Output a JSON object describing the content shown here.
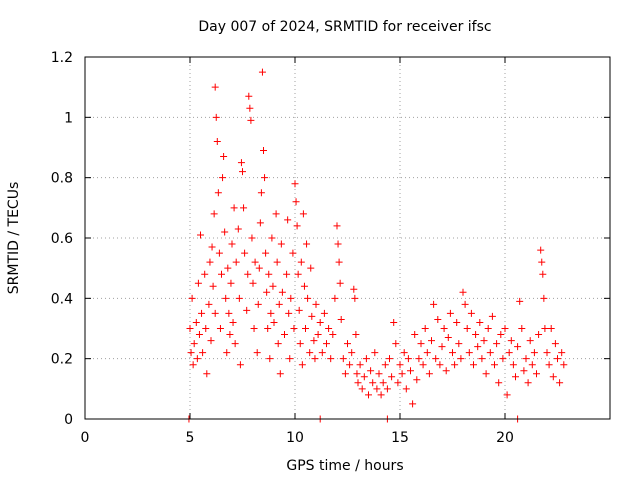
{
  "chart_data": {
    "type": "scatter",
    "title": "Day 007 of 2024, SRMTID for receiver ifsc",
    "xlabel": "GPS time / hours",
    "ylabel": "SRMTID / TECUs",
    "xlim": [
      0,
      25
    ],
    "ylim": [
      0,
      1.2
    ],
    "xticks": [
      "0",
      "5",
      "10",
      "15",
      "20"
    ],
    "yticks": [
      "0",
      "0.2",
      "0.4",
      "0.6",
      "0.8",
      "1",
      "1.2"
    ],
    "grid": true,
    "marker": "+",
    "color": "#ff0000",
    "series": [
      {
        "name": "SRMTID",
        "points": [
          [
            4.95,
            0.0
          ],
          [
            11.2,
            0.0
          ],
          [
            14.4,
            0.0
          ],
          [
            20.6,
            0.0
          ],
          [
            5.0,
            0.3
          ],
          [
            5.05,
            0.22
          ],
          [
            5.1,
            0.4
          ],
          [
            5.15,
            0.18
          ],
          [
            5.2,
            0.25
          ],
          [
            5.3,
            0.32
          ],
          [
            5.35,
            0.2
          ],
          [
            5.4,
            0.45
          ],
          [
            5.45,
            0.28
          ],
          [
            5.5,
            0.61
          ],
          [
            5.55,
            0.35
          ],
          [
            5.6,
            0.22
          ],
          [
            5.7,
            0.48
          ],
          [
            5.75,
            0.3
          ],
          [
            5.8,
            0.15
          ],
          [
            5.9,
            0.38
          ],
          [
            5.95,
            0.52
          ],
          [
            6.0,
            0.26
          ],
          [
            6.05,
            0.57
          ],
          [
            6.1,
            0.44
          ],
          [
            6.15,
            0.68
          ],
          [
            6.2,
            0.35
          ],
          [
            6.2,
            1.1
          ],
          [
            6.25,
            1.0
          ],
          [
            6.3,
            0.92
          ],
          [
            6.35,
            0.75
          ],
          [
            6.4,
            0.55
          ],
          [
            6.45,
            0.3
          ],
          [
            6.5,
            0.48
          ],
          [
            6.55,
            0.8
          ],
          [
            6.6,
            0.87
          ],
          [
            6.65,
            0.62
          ],
          [
            6.7,
            0.4
          ],
          [
            6.75,
            0.22
          ],
          [
            6.8,
            0.5
          ],
          [
            6.85,
            0.35
          ],
          [
            6.9,
            0.28
          ],
          [
            6.95,
            0.45
          ],
          [
            7.0,
            0.58
          ],
          [
            7.05,
            0.32
          ],
          [
            7.1,
            0.7
          ],
          [
            7.15,
            0.25
          ],
          [
            7.2,
            0.52
          ],
          [
            7.3,
            0.63
          ],
          [
            7.35,
            0.4
          ],
          [
            7.4,
            0.18
          ],
          [
            7.45,
            0.85
          ],
          [
            7.5,
            0.82
          ],
          [
            7.55,
            0.7
          ],
          [
            7.6,
            0.55
          ],
          [
            7.7,
            0.36
          ],
          [
            7.75,
            0.48
          ],
          [
            7.8,
            1.07
          ],
          [
            7.85,
            1.03
          ],
          [
            7.9,
            0.99
          ],
          [
            7.95,
            0.6
          ],
          [
            8.0,
            0.45
          ],
          [
            8.05,
            0.3
          ],
          [
            8.1,
            0.52
          ],
          [
            8.2,
            0.22
          ],
          [
            8.25,
            0.38
          ],
          [
            8.3,
            0.5
          ],
          [
            8.35,
            0.65
          ],
          [
            8.4,
            0.75
          ],
          [
            8.45,
            1.15
          ],
          [
            8.5,
            0.89
          ],
          [
            8.55,
            0.8
          ],
          [
            8.6,
            0.55
          ],
          [
            8.65,
            0.42
          ],
          [
            8.7,
            0.3
          ],
          [
            8.75,
            0.48
          ],
          [
            8.8,
            0.2
          ],
          [
            8.85,
            0.35
          ],
          [
            8.9,
            0.6
          ],
          [
            8.95,
            0.44
          ],
          [
            9.0,
            0.32
          ],
          [
            9.1,
            0.68
          ],
          [
            9.15,
            0.52
          ],
          [
            9.2,
            0.25
          ],
          [
            9.25,
            0.38
          ],
          [
            9.3,
            0.15
          ],
          [
            9.35,
            0.58
          ],
          [
            9.4,
            0.42
          ],
          [
            9.5,
            0.28
          ],
          [
            9.6,
            0.48
          ],
          [
            9.65,
            0.66
          ],
          [
            9.7,
            0.35
          ],
          [
            9.75,
            0.2
          ],
          [
            9.8,
            0.4
          ],
          [
            9.9,
            0.55
          ],
          [
            9.95,
            0.3
          ],
          [
            10.0,
            0.78
          ],
          [
            10.05,
            0.72
          ],
          [
            10.1,
            0.64
          ],
          [
            10.15,
            0.48
          ],
          [
            10.2,
            0.36
          ],
          [
            10.25,
            0.25
          ],
          [
            10.3,
            0.52
          ],
          [
            10.35,
            0.18
          ],
          [
            10.4,
            0.68
          ],
          [
            10.45,
            0.44
          ],
          [
            10.5,
            0.3
          ],
          [
            10.55,
            0.58
          ],
          [
            10.6,
            0.4
          ],
          [
            10.7,
            0.22
          ],
          [
            10.75,
            0.5
          ],
          [
            10.8,
            0.34
          ],
          [
            10.9,
            0.26
          ],
          [
            10.95,
            0.2
          ],
          [
            11.0,
            0.38
          ],
          [
            11.1,
            0.28
          ],
          [
            11.2,
            0.32
          ],
          [
            11.3,
            0.22
          ],
          [
            11.4,
            0.35
          ],
          [
            11.5,
            0.25
          ],
          [
            11.6,
            0.3
          ],
          [
            11.7,
            0.2
          ],
          [
            11.8,
            0.28
          ],
          [
            11.9,
            0.4
          ],
          [
            12.0,
            0.64
          ],
          [
            12.05,
            0.58
          ],
          [
            12.1,
            0.52
          ],
          [
            12.15,
            0.45
          ],
          [
            12.2,
            0.33
          ],
          [
            12.3,
            0.2
          ],
          [
            12.4,
            0.15
          ],
          [
            12.5,
            0.25
          ],
          [
            12.6,
            0.18
          ],
          [
            12.7,
            0.22
          ],
          [
            12.8,
            0.43
          ],
          [
            12.85,
            0.4
          ],
          [
            12.9,
            0.28
          ],
          [
            12.95,
            0.15
          ],
          [
            13.0,
            0.12
          ],
          [
            13.1,
            0.18
          ],
          [
            13.2,
            0.1
          ],
          [
            13.3,
            0.14
          ],
          [
            13.4,
            0.2
          ],
          [
            13.5,
            0.08
          ],
          [
            13.6,
            0.16
          ],
          [
            13.7,
            0.12
          ],
          [
            13.8,
            0.22
          ],
          [
            13.9,
            0.1
          ],
          [
            14.0,
            0.15
          ],
          [
            14.1,
            0.08
          ],
          [
            14.2,
            0.12
          ],
          [
            14.3,
            0.18
          ],
          [
            14.4,
            0.1
          ],
          [
            14.5,
            0.2
          ],
          [
            14.6,
            0.14
          ],
          [
            14.7,
            0.32
          ],
          [
            14.8,
            0.25
          ],
          [
            14.9,
            0.12
          ],
          [
            15.0,
            0.18
          ],
          [
            15.1,
            0.15
          ],
          [
            15.2,
            0.22
          ],
          [
            15.3,
            0.1
          ],
          [
            15.4,
            0.2
          ],
          [
            15.5,
            0.16
          ],
          [
            15.6,
            0.05
          ],
          [
            15.7,
            0.28
          ],
          [
            15.8,
            0.13
          ],
          [
            15.9,
            0.2
          ],
          [
            16.0,
            0.25
          ],
          [
            16.1,
            0.18
          ],
          [
            16.2,
            0.3
          ],
          [
            16.3,
            0.22
          ],
          [
            16.4,
            0.15
          ],
          [
            16.5,
            0.26
          ],
          [
            16.6,
            0.38
          ],
          [
            16.7,
            0.2
          ],
          [
            16.8,
            0.33
          ],
          [
            16.9,
            0.18
          ],
          [
            17.0,
            0.24
          ],
          [
            17.1,
            0.3
          ],
          [
            17.2,
            0.16
          ],
          [
            17.3,
            0.27
          ],
          [
            17.4,
            0.35
          ],
          [
            17.5,
            0.22
          ],
          [
            17.6,
            0.18
          ],
          [
            17.7,
            0.32
          ],
          [
            17.8,
            0.25
          ],
          [
            17.9,
            0.2
          ],
          [
            18.0,
            0.42
          ],
          [
            18.1,
            0.38
          ],
          [
            18.2,
            0.3
          ],
          [
            18.3,
            0.22
          ],
          [
            18.4,
            0.35
          ],
          [
            18.5,
            0.18
          ],
          [
            18.6,
            0.28
          ],
          [
            18.7,
            0.24
          ],
          [
            18.8,
            0.32
          ],
          [
            18.9,
            0.2
          ],
          [
            19.0,
            0.26
          ],
          [
            19.1,
            0.15
          ],
          [
            19.2,
            0.3
          ],
          [
            19.3,
            0.22
          ],
          [
            19.4,
            0.34
          ],
          [
            19.5,
            0.18
          ],
          [
            19.6,
            0.25
          ],
          [
            19.7,
            0.12
          ],
          [
            19.8,
            0.28
          ],
          [
            19.9,
            0.2
          ],
          [
            20.0,
            0.3
          ],
          [
            20.1,
            0.08
          ],
          [
            20.2,
            0.22
          ],
          [
            20.3,
            0.26
          ],
          [
            20.4,
            0.18
          ],
          [
            20.5,
            0.14
          ],
          [
            20.6,
            0.24
          ],
          [
            20.7,
            0.39
          ],
          [
            20.8,
            0.3
          ],
          [
            20.9,
            0.16
          ],
          [
            21.0,
            0.2
          ],
          [
            21.1,
            0.12
          ],
          [
            21.2,
            0.26
          ],
          [
            21.3,
            0.18
          ],
          [
            21.4,
            0.22
          ],
          [
            21.5,
            0.15
          ],
          [
            21.6,
            0.28
          ],
          [
            21.7,
            0.56
          ],
          [
            21.75,
            0.52
          ],
          [
            21.8,
            0.48
          ],
          [
            21.85,
            0.4
          ],
          [
            21.9,
            0.3
          ],
          [
            22.0,
            0.22
          ],
          [
            22.1,
            0.18
          ],
          [
            22.2,
            0.3
          ],
          [
            22.3,
            0.14
          ],
          [
            22.4,
            0.25
          ],
          [
            22.5,
            0.2
          ],
          [
            22.6,
            0.12
          ],
          [
            22.7,
            0.22
          ],
          [
            22.8,
            0.18
          ]
        ]
      }
    ]
  }
}
